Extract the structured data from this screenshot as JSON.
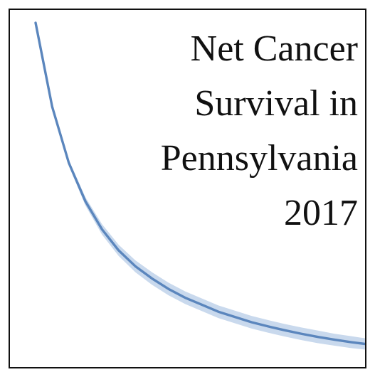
{
  "chart_data": {
    "type": "line",
    "title": "Net Cancer Survival in Pennsylvania 2017",
    "title_lines": [
      "Net Cancer",
      "Survival in",
      "Pennsylvania",
      "2017"
    ],
    "xlabel": "",
    "ylabel": "",
    "grid": false,
    "legend": "none",
    "colors": {
      "line": "#5b86bd",
      "band": "#c9d9ed",
      "text": "#111111",
      "frame": "#111111"
    },
    "x": [
      0,
      1,
      2,
      3,
      4,
      5,
      6,
      7,
      8,
      9,
      10,
      11,
      12,
      13,
      14,
      15,
      16,
      17,
      18,
      19,
      20
    ],
    "series": [
      {
        "values": [
          1.0,
          0.76,
          0.6,
          0.49,
          0.41,
          0.35,
          0.305,
          0.27,
          0.24,
          0.215,
          0.195,
          0.175,
          0.16,
          0.145,
          0.133,
          0.122,
          0.112,
          0.103,
          0.095,
          0.088,
          0.082
        ],
        "lower": [
          1.0,
          0.755,
          0.592,
          0.478,
          0.395,
          0.334,
          0.288,
          0.252,
          0.222,
          0.197,
          0.177,
          0.157,
          0.142,
          0.127,
          0.115,
          0.104,
          0.094,
          0.085,
          0.078,
          0.071,
          0.066
        ],
        "upper": [
          1.0,
          0.765,
          0.608,
          0.502,
          0.425,
          0.366,
          0.322,
          0.288,
          0.258,
          0.233,
          0.213,
          0.193,
          0.178,
          0.163,
          0.151,
          0.14,
          0.13,
          0.121,
          0.112,
          0.105,
          0.098
        ]
      }
    ]
  }
}
